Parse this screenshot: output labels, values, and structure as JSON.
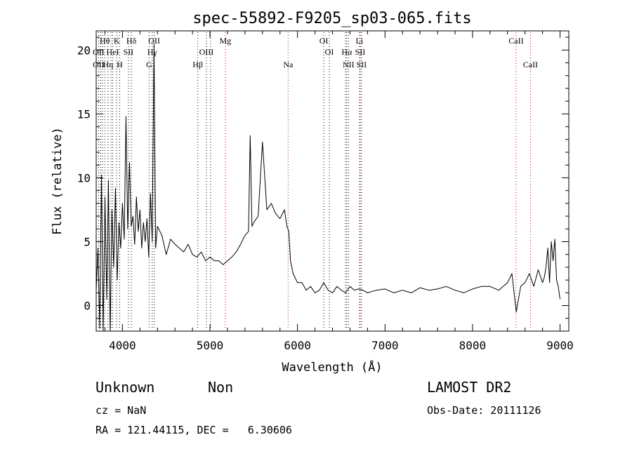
{
  "chart_data": {
    "type": "line",
    "title": "spec-55892-F9205_sp03-065.fits",
    "xlabel": "Wavelength (Å)",
    "ylabel": "Flux (relative)",
    "xlim": [
      3700,
      9100
    ],
    "ylim": [
      -2,
      21.5
    ],
    "x_ticks": [
      4000,
      5000,
      6000,
      7000,
      8000,
      9000
    ],
    "y_ticks": [
      0,
      5,
      10,
      15,
      20
    ],
    "grid": false,
    "series": [
      {
        "x": [
          3700,
          3720,
          3740,
          3760,
          3780,
          3800,
          3820,
          3840,
          3860,
          3880,
          3900,
          3920,
          3940,
          3960,
          3980,
          4000,
          4020,
          4040,
          4060,
          4080,
          4100,
          4120,
          4140,
          4160,
          4180,
          4200,
          4220,
          4240,
          4260,
          4280,
          4300,
          4320,
          4340,
          4360,
          4380,
          4400,
          4450,
          4500,
          4550,
          4600,
          4650,
          4700,
          4750,
          4800,
          4850,
          4900,
          4950,
          5000,
          5050,
          5100,
          5150,
          5200,
          5250,
          5300,
          5350,
          5400,
          5440,
          5460,
          5480,
          5500,
          5550,
          5600,
          5650,
          5700,
          5750,
          5800,
          5850,
          5880,
          5900,
          5920,
          5950,
          6000,
          6050,
          6100,
          6150,
          6200,
          6250,
          6300,
          6350,
          6400,
          6450,
          6500,
          6550,
          6600,
          6650,
          6700,
          6750,
          6800,
          6900,
          7000,
          7100,
          7200,
          7300,
          7400,
          7500,
          7600,
          7700,
          7800,
          7900,
          8000,
          8100,
          8200,
          8300,
          8400,
          8450,
          8500,
          8550,
          8600,
          8650,
          8700,
          8750,
          8800,
          8820,
          8840,
          8860,
          8880,
          8900,
          8920,
          8940,
          8960,
          8980,
          9000
        ],
        "values": [
          1.2,
          4.5,
          -1.8,
          10.2,
          -2.0,
          8.5,
          0.5,
          9.8,
          -2.0,
          7.5,
          3.0,
          9.2,
          2.0,
          6.5,
          4.5,
          8.0,
          5.2,
          14.8,
          6.0,
          11.2,
          6.2,
          7.0,
          4.8,
          8.5,
          5.8,
          7.5,
          4.5,
          6.5,
          5.0,
          6.8,
          3.8,
          8.8,
          5.0,
          20.5,
          4.5,
          6.2,
          5.5,
          4.0,
          5.2,
          4.8,
          4.5,
          4.2,
          4.8,
          4.0,
          3.8,
          4.2,
          3.5,
          3.8,
          3.5,
          3.5,
          3.2,
          3.5,
          3.8,
          4.2,
          4.8,
          5.5,
          5.8,
          13.3,
          6.2,
          6.5,
          7.0,
          12.8,
          7.5,
          8.0,
          7.2,
          6.8,
          7.5,
          6.2,
          5.8,
          3.5,
          2.5,
          1.8,
          1.8,
          1.2,
          1.5,
          1.0,
          1.2,
          1.8,
          1.2,
          1.0,
          1.5,
          1.2,
          1.0,
          1.5,
          1.2,
          1.3,
          1.2,
          1.0,
          1.2,
          1.3,
          1.0,
          1.2,
          1.0,
          1.4,
          1.2,
          1.3,
          1.5,
          1.2,
          1.0,
          1.3,
          1.5,
          1.5,
          1.2,
          1.8,
          2.5,
          -0.5,
          1.5,
          1.8,
          2.5,
          1.5,
          2.8,
          1.8,
          2.2,
          3.0,
          4.5,
          1.8,
          5.0,
          3.5,
          5.2,
          2.0,
          1.5,
          0.5
        ]
      }
    ],
    "annotations": {
      "lines": [
        {
          "x": 3727,
          "style": "dotted",
          "color": "#000000"
        },
        {
          "x": 3750,
          "style": "dotted",
          "color": "#000000"
        },
        {
          "x": 3771,
          "style": "dotted",
          "color": "#000000"
        },
        {
          "x": 3798,
          "style": "dotted",
          "color": "#000000"
        },
        {
          "x": 3835,
          "style": "dotted",
          "color": "#000000"
        },
        {
          "x": 3869,
          "style": "dotted",
          "color": "#000000"
        },
        {
          "x": 3889,
          "style": "dotted",
          "color": "#000000"
        },
        {
          "x": 3934,
          "style": "dotted",
          "color": "#000000"
        },
        {
          "x": 3968,
          "style": "dotted",
          "color": "#000000"
        },
        {
          "x": 4102,
          "style": "dotted",
          "color": "#000000"
        },
        {
          "x": 4068,
          "style": "dotted",
          "color": "#000000"
        },
        {
          "x": 4304,
          "style": "dotted",
          "color": "#000000"
        },
        {
          "x": 4340,
          "style": "dotted",
          "color": "#000000"
        },
        {
          "x": 4363,
          "style": "dotted",
          "color": "#000000"
        },
        {
          "x": 4861,
          "style": "dotted",
          "color": "#000000"
        },
        {
          "x": 4959,
          "style": "dotted",
          "color": "#000000"
        },
        {
          "x": 5007,
          "style": "dotted",
          "color": "#000000"
        },
        {
          "x": 5175,
          "style": "dotted",
          "color": "#cc0000"
        },
        {
          "x": 5893,
          "style": "dotted",
          "color": "#cc0000"
        },
        {
          "x": 6300,
          "style": "dotted",
          "color": "#000000"
        },
        {
          "x": 6364,
          "style": "dotted",
          "color": "#000000"
        },
        {
          "x": 6548,
          "style": "dotted",
          "color": "#000000"
        },
        {
          "x": 6563,
          "style": "dotted",
          "color": "#000000"
        },
        {
          "x": 6583,
          "style": "dotted",
          "color": "#000000"
        },
        {
          "x": 6708,
          "style": "dotted",
          "color": "#cc0000"
        },
        {
          "x": 6716,
          "style": "dotted",
          "color": "#000000"
        },
        {
          "x": 6731,
          "style": "dotted",
          "color": "#000000"
        },
        {
          "x": 8498,
          "style": "dotted",
          "color": "#cc0000"
        },
        {
          "x": 8662,
          "style": "dotted",
          "color": "#cc0000"
        }
      ],
      "labels": [
        {
          "text": "Hθ",
          "x": 3798,
          "row": 1
        },
        {
          "text": "K",
          "x": 3934,
          "row": 1
        },
        {
          "text": "Hδ",
          "x": 4102,
          "row": 1
        },
        {
          "text": "OII",
          "x": 4363,
          "row": 1
        },
        {
          "text": "Mg",
          "x": 5175,
          "row": 1
        },
        {
          "text": "OI",
          "x": 6300,
          "row": 1
        },
        {
          "text": "Li",
          "x": 6708,
          "row": 1
        },
        {
          "text": "CaII",
          "x": 8498,
          "row": 1
        },
        {
          "text": "OII",
          "x": 3727,
          "row": 2
        },
        {
          "text": "HeI",
          "x": 3889,
          "row": 2
        },
        {
          "text": "SII",
          "x": 4068,
          "row": 2
        },
        {
          "text": "Hγ",
          "x": 4340,
          "row": 2
        },
        {
          "text": "OIII",
          "x": 4959,
          "row": 2
        },
        {
          "text": "OI",
          "x": 6364,
          "row": 2
        },
        {
          "text": "Hα",
          "x": 6563,
          "row": 2
        },
        {
          "text": "SII",
          "x": 6716,
          "row": 2
        },
        {
          "text": "OII",
          "x": 3727,
          "row": 3
        },
        {
          "text": "Hη",
          "x": 3835,
          "row": 3
        },
        {
          "text": "H",
          "x": 3968,
          "row": 3
        },
        {
          "text": "G",
          "x": 4304,
          "row": 3
        },
        {
          "text": "Hβ",
          "x": 4861,
          "row": 3
        },
        {
          "text": "Na",
          "x": 5893,
          "row": 3
        },
        {
          "text": "NII",
          "x": 6583,
          "row": 3
        },
        {
          "text": "SII",
          "x": 6731,
          "row": 3
        },
        {
          "text": "CaII",
          "x": 8662,
          "row": 3
        }
      ]
    }
  },
  "info": {
    "class": "Unknown",
    "subclass": "Non",
    "survey": "LAMOST DR2",
    "cz": "cz = NaN",
    "obs_date": "Obs-Date: 20111126",
    "coords": "RA = 121.44115, DEC =   6.30606"
  }
}
